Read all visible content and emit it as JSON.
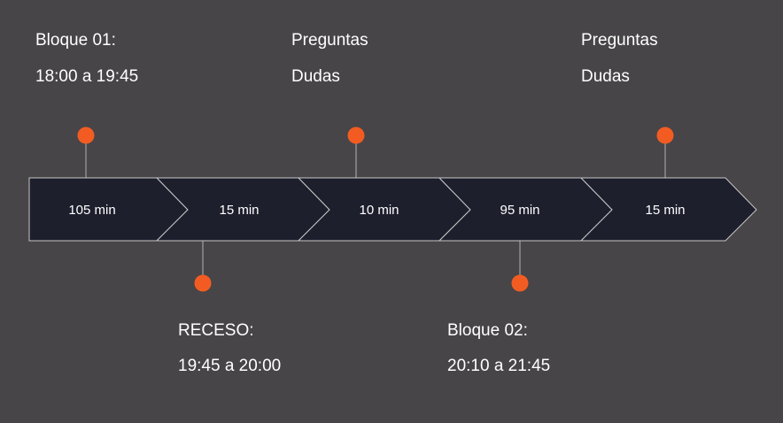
{
  "colors": {
    "background": "#474547",
    "segment_fill": "#1e1f2d",
    "segment_stroke": "#c8c8c8",
    "dot": "#f25c22",
    "connector": "#a0a0a0",
    "text": "#ffffff"
  },
  "segments": [
    {
      "label": "105 min"
    },
    {
      "label": "15 min"
    },
    {
      "label": "10 min"
    },
    {
      "label": "95 min"
    },
    {
      "label": "15 min"
    }
  ],
  "annotations": {
    "top_1": {
      "line1": "Bloque 01:",
      "line2": "18:00 a 19:45"
    },
    "top_2": {
      "line1": "Preguntas",
      "line2": "Dudas"
    },
    "top_3": {
      "line1": "Preguntas",
      "line2": "Dudas"
    },
    "bottom_1": {
      "line1": "RECESO:",
      "line2": "19:45 a 20:00"
    },
    "bottom_2": {
      "line1": "Bloque 02:",
      "line2": "20:10 a 21:45"
    }
  }
}
